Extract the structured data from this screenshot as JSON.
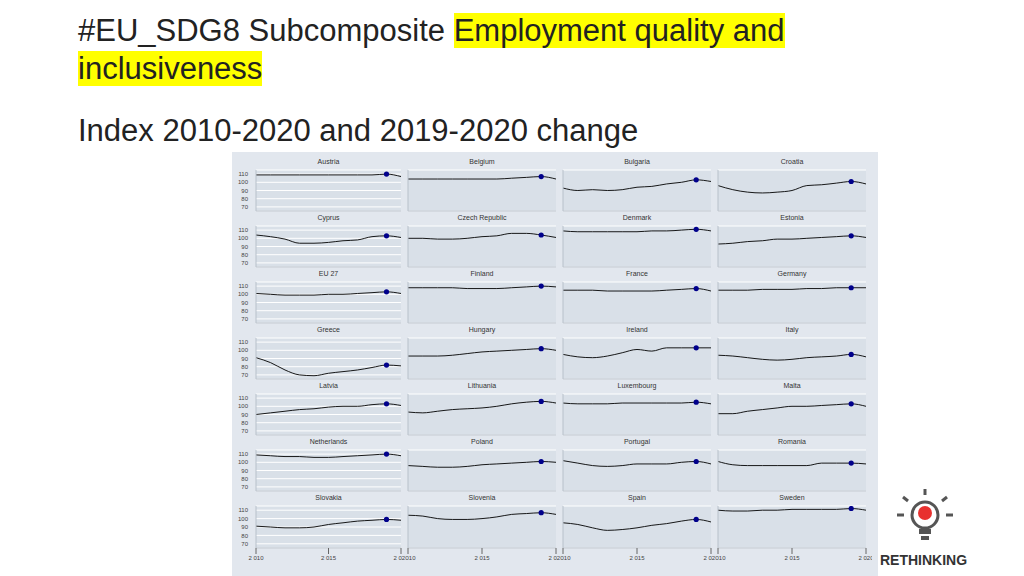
{
  "chart_data": {
    "type": "line",
    "title": "#EU_SDG8 Subcomposite",
    "title_highlight": "Employment quality and inclusiveness",
    "subtitle": "Index 2010-2020 and 2019-2020 change",
    "logo_text": "RETHINKING",
    "x": [
      2010,
      2011,
      2012,
      2013,
      2014,
      2015,
      2016,
      2017,
      2018,
      2019,
      2020
    ],
    "xlim": [
      2010,
      2020
    ],
    "xticks": [
      {
        "value": 2010,
        "label": "2 010"
      },
      {
        "value": 2015,
        "label": "2 015"
      },
      {
        "value": 2020,
        "label": "2 020"
      }
    ],
    "ylim": [
      65,
      115
    ],
    "yticks": [
      70,
      80,
      90,
      100,
      110
    ],
    "grid": true,
    "color": "#000000",
    "marker": "dot",
    "marked_x": 2019,
    "series": [
      {
        "name": "Austria",
        "values": [
          109,
          109,
          109,
          109,
          109,
          109,
          109,
          109,
          109,
          110,
          107
        ]
      },
      {
        "name": "Belgium",
        "values": [
          104,
          104,
          104,
          104,
          104,
          104,
          104,
          105,
          106,
          107,
          104
        ]
      },
      {
        "name": "Bulgaria",
        "values": [
          93,
          90,
          91,
          90,
          91,
          94,
          95,
          98,
          100,
          103,
          101
        ]
      },
      {
        "name": "Croatia",
        "values": [
          96,
          91,
          88,
          87,
          88,
          90,
          96,
          97,
          99,
          101,
          98
        ]
      },
      {
        "name": "Cyprus",
        "values": [
          104,
          102,
          99,
          94,
          94,
          95,
          97,
          98,
          102,
          103,
          101
        ]
      },
      {
        "name": "Czech Republic",
        "values": [
          100,
          100,
          99,
          99,
          100,
          102,
          103,
          106,
          106,
          104,
          101
        ]
      },
      {
        "name": "Denmark",
        "values": [
          109,
          108,
          108,
          108,
          108,
          108,
          109,
          109,
          110,
          111,
          109
        ]
      },
      {
        "name": "Estonia",
        "values": [
          93,
          94,
          96,
          97,
          99,
          99,
          100,
          101,
          102,
          103,
          101
        ]
      },
      {
        "name": "EU 27",
        "values": [
          101,
          100,
          99,
          99,
          99,
          100,
          100,
          101,
          102,
          103,
          101
        ]
      },
      {
        "name": "Finland",
        "values": [
          108,
          108,
          108,
          108,
          107,
          107,
          107,
          108,
          109,
          110,
          109
        ]
      },
      {
        "name": "France",
        "values": [
          105,
          105,
          105,
          104,
          104,
          104,
          104,
          105,
          106,
          107,
          104
        ]
      },
      {
        "name": "Germany",
        "values": [
          105,
          105,
          105,
          106,
          106,
          106,
          107,
          107,
          108,
          108,
          108
        ]
      },
      {
        "name": "Greece",
        "values": [
          91,
          85,
          76,
          70,
          69,
          72,
          74,
          76,
          79,
          82,
          81
        ]
      },
      {
        "name": "Hungary",
        "values": [
          93,
          93,
          93,
          94,
          96,
          98,
          99,
          100,
          101,
          102,
          100
        ]
      },
      {
        "name": "Ireland",
        "values": [
          95,
          92,
          91,
          93,
          97,
          101,
          99,
          103,
          103,
          103,
          103
        ]
      },
      {
        "name": "Italy",
        "values": [
          94,
          93,
          91,
          89,
          88,
          89,
          91,
          92,
          93,
          95,
          92
        ]
      },
      {
        "name": "Latvia",
        "values": [
          90,
          92,
          94,
          96,
          97,
          99,
          100,
          100,
          102,
          103,
          101
        ]
      },
      {
        "name": "Lithuania",
        "values": [
          93,
          92,
          94,
          96,
          97,
          98,
          100,
          103,
          105,
          106,
          104
        ]
      },
      {
        "name": "Luxembourg",
        "values": [
          104,
          103,
          103,
          103,
          104,
          104,
          104,
          104,
          104,
          105,
          103
        ]
      },
      {
        "name": "Malta",
        "values": [
          91,
          91,
          94,
          96,
          98,
          100,
          100,
          101,
          102,
          103,
          100
        ]
      },
      {
        "name": "Netherlands",
        "values": [
          109,
          108,
          107,
          107,
          106,
          106,
          107,
          108,
          109,
          110,
          108
        ]
      },
      {
        "name": "Poland",
        "values": [
          96,
          95,
          94,
          94,
          95,
          97,
          98,
          99,
          100,
          101,
          100
        ]
      },
      {
        "name": "Portugal",
        "values": [
          102,
          99,
          96,
          95,
          96,
          98,
          98,
          98,
          100,
          101,
          98
        ]
      },
      {
        "name": "Romania",
        "values": [
          101,
          97,
          96,
          96,
          96,
          96,
          96,
          99,
          99,
          99,
          98
        ]
      },
      {
        "name": "Slovakia",
        "values": [
          91,
          90,
          89,
          89,
          90,
          93,
          95,
          97,
          98,
          99,
          98
        ]
      },
      {
        "name": "Slovenia",
        "values": [
          104,
          103,
          100,
          99,
          99,
          100,
          102,
          105,
          106,
          107,
          105
        ]
      },
      {
        "name": "Spain",
        "values": [
          95,
          93,
          89,
          86,
          87,
          89,
          92,
          94,
          97,
          99,
          96
        ]
      },
      {
        "name": "Sweden",
        "values": [
          110,
          109,
          109,
          110,
          110,
          111,
          111,
          111,
          111,
          112,
          110
        ]
      }
    ]
  }
}
